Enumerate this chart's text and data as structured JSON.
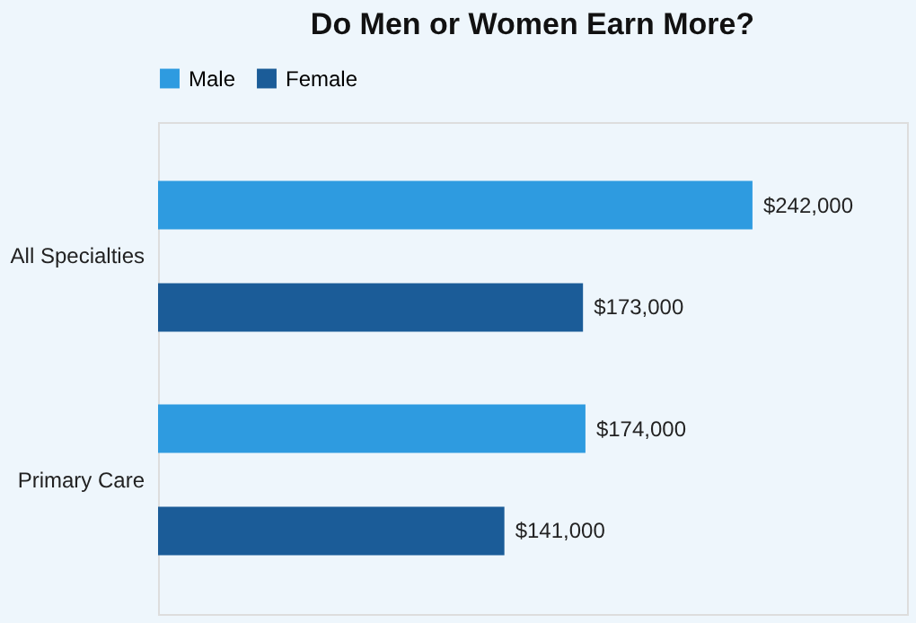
{
  "chart_data": {
    "type": "bar",
    "orientation": "horizontal",
    "title": "Do Men or Women Earn More?",
    "categories": [
      "All Specialties",
      "Primary Care"
    ],
    "series": [
      {
        "name": "Male",
        "color": "#2e9be0",
        "values": [
          242000,
          174000
        ],
        "value_labels": [
          "$242,000",
          "$174,000"
        ]
      },
      {
        "name": "Female",
        "color": "#1b5c98",
        "values": [
          173000,
          141000
        ],
        "value_labels": [
          "$173,000",
          "$141,000"
        ]
      }
    ],
    "legend": "top"
  }
}
